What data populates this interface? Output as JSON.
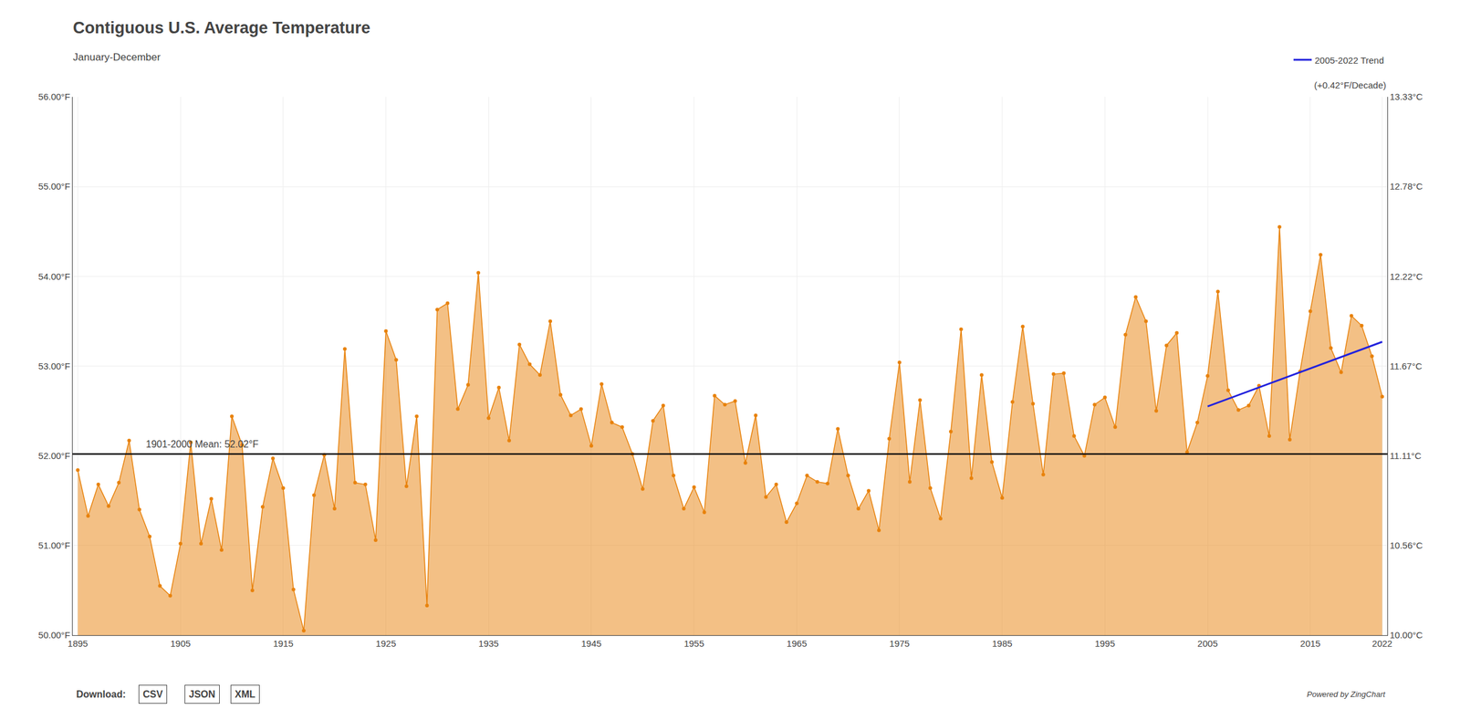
{
  "chart_data": {
    "type": "line",
    "title": "Contiguous U.S. Average Temperature",
    "subtitle": "January-December",
    "x": [
      1895,
      1896,
      1897,
      1898,
      1899,
      1900,
      1901,
      1902,
      1903,
      1904,
      1905,
      1906,
      1907,
      1908,
      1909,
      1910,
      1911,
      1912,
      1913,
      1914,
      1915,
      1916,
      1917,
      1918,
      1919,
      1920,
      1921,
      1922,
      1923,
      1924,
      1925,
      1926,
      1927,
      1928,
      1929,
      1930,
      1931,
      1932,
      1933,
      1934,
      1935,
      1936,
      1937,
      1938,
      1939,
      1940,
      1941,
      1942,
      1943,
      1944,
      1945,
      1946,
      1947,
      1948,
      1949,
      1950,
      1951,
      1952,
      1953,
      1954,
      1955,
      1956,
      1957,
      1958,
      1959,
      1960,
      1961,
      1962,
      1963,
      1964,
      1965,
      1966,
      1967,
      1968,
      1969,
      1970,
      1971,
      1972,
      1973,
      1974,
      1975,
      1976,
      1977,
      1978,
      1979,
      1980,
      1981,
      1982,
      1983,
      1984,
      1985,
      1986,
      1987,
      1988,
      1989,
      1990,
      1991,
      1992,
      1993,
      1994,
      1995,
      1996,
      1997,
      1998,
      1999,
      2000,
      2001,
      2002,
      2003,
      2004,
      2005,
      2006,
      2007,
      2008,
      2009,
      2010,
      2011,
      2012,
      2013,
      2014,
      2015,
      2016,
      2017,
      2018,
      2019,
      2020,
      2021,
      2022
    ],
    "series": [
      {
        "type": "area",
        "color": "#E8820C",
        "marker": "circle",
        "values": [
          51.84,
          51.33,
          51.68,
          51.44,
          51.7,
          52.17,
          51.4,
          51.1,
          50.55,
          50.44,
          51.02,
          52.15,
          51.02,
          51.52,
          50.95,
          52.44,
          52.12,
          50.5,
          51.43,
          51.97,
          51.64,
          50.51,
          50.05,
          51.56,
          52.01,
          51.41,
          53.19,
          51.7,
          51.68,
          51.06,
          53.39,
          53.07,
          51.66,
          52.44,
          50.33,
          53.63,
          53.7,
          52.52,
          52.79,
          54.04,
          52.42,
          52.76,
          52.17,
          53.24,
          53.02,
          52.9,
          53.5,
          52.68,
          52.45,
          52.52,
          52.11,
          52.8,
          52.37,
          52.32,
          52.02,
          51.63,
          52.39,
          52.56,
          51.78,
          51.41,
          51.65,
          51.37,
          52.67,
          52.57,
          52.61,
          51.92,
          52.45,
          51.54,
          51.68,
          51.26,
          51.47,
          51.78,
          51.71,
          51.69,
          52.3,
          51.78,
          51.41,
          51.61,
          51.17,
          52.19,
          53.04,
          51.71,
          52.62,
          51.64,
          51.3,
          52.27,
          53.41,
          51.75,
          52.9,
          51.93,
          51.53,
          52.6,
          53.44,
          52.58,
          51.79,
          52.91,
          52.92,
          52.22,
          52.0,
          52.57,
          52.65,
          52.32,
          53.35,
          53.77,
          53.5,
          52.5,
          53.23,
          53.37,
          52.04,
          52.37,
          52.89,
          53.83,
          52.73,
          52.51,
          52.56,
          52.78,
          52.22,
          54.55,
          52.18,
          52.94,
          53.61,
          54.24,
          53.2,
          52.93,
          53.56,
          53.45,
          53.11,
          52.66
        ]
      },
      {
        "type": "line",
        "name": "2005-2022 Trend",
        "color": "#2222DD",
        "x": [
          2005,
          2022
        ],
        "values": [
          52.55,
          53.27
        ]
      }
    ],
    "reference_lines": [
      {
        "value": 52.02,
        "label": "1901-2000 Mean: 52.02°F",
        "color": "#111111"
      }
    ],
    "annotations": [
      "(+0.42°F/Decade)",
      "Powered by ZingChart",
      "Download:",
      "CSV",
      "JSON",
      "XML"
    ],
    "xlim": [
      1894.5,
      2022.5
    ],
    "xticks": [
      1895,
      1905,
      1915,
      1925,
      1935,
      1945,
      1955,
      1965,
      1975,
      1985,
      1995,
      2005,
      2015,
      2022
    ],
    "ylim": [
      50.0,
      56.0
    ],
    "yticks": [
      {
        "value": 50.0,
        "label": "50.00°F"
      },
      {
        "value": 51.0,
        "label": "51.00°F"
      },
      {
        "value": 52.0,
        "label": "52.00°F"
      },
      {
        "value": 53.0,
        "label": "53.00°F"
      },
      {
        "value": 54.0,
        "label": "54.00°F"
      },
      {
        "value": 55.0,
        "label": "55.00°F"
      },
      {
        "value": 56.0,
        "label": "56.00°F"
      }
    ],
    "y2lim": [
      50.0,
      56.0
    ],
    "y2ticks": [
      {
        "value": 50.0,
        "label": "10.00°C"
      },
      {
        "value": 51.0,
        "label": "10.56°C"
      },
      {
        "value": 52.0,
        "label": "11.11°C"
      },
      {
        "value": 53.0,
        "label": "11.67°C"
      },
      {
        "value": 54.0,
        "label": "12.22°C"
      },
      {
        "value": 55.0,
        "label": "12.78°C"
      },
      {
        "value": 56.0,
        "label": "13.33°C"
      }
    ],
    "grid": true,
    "legend": "top right"
  }
}
